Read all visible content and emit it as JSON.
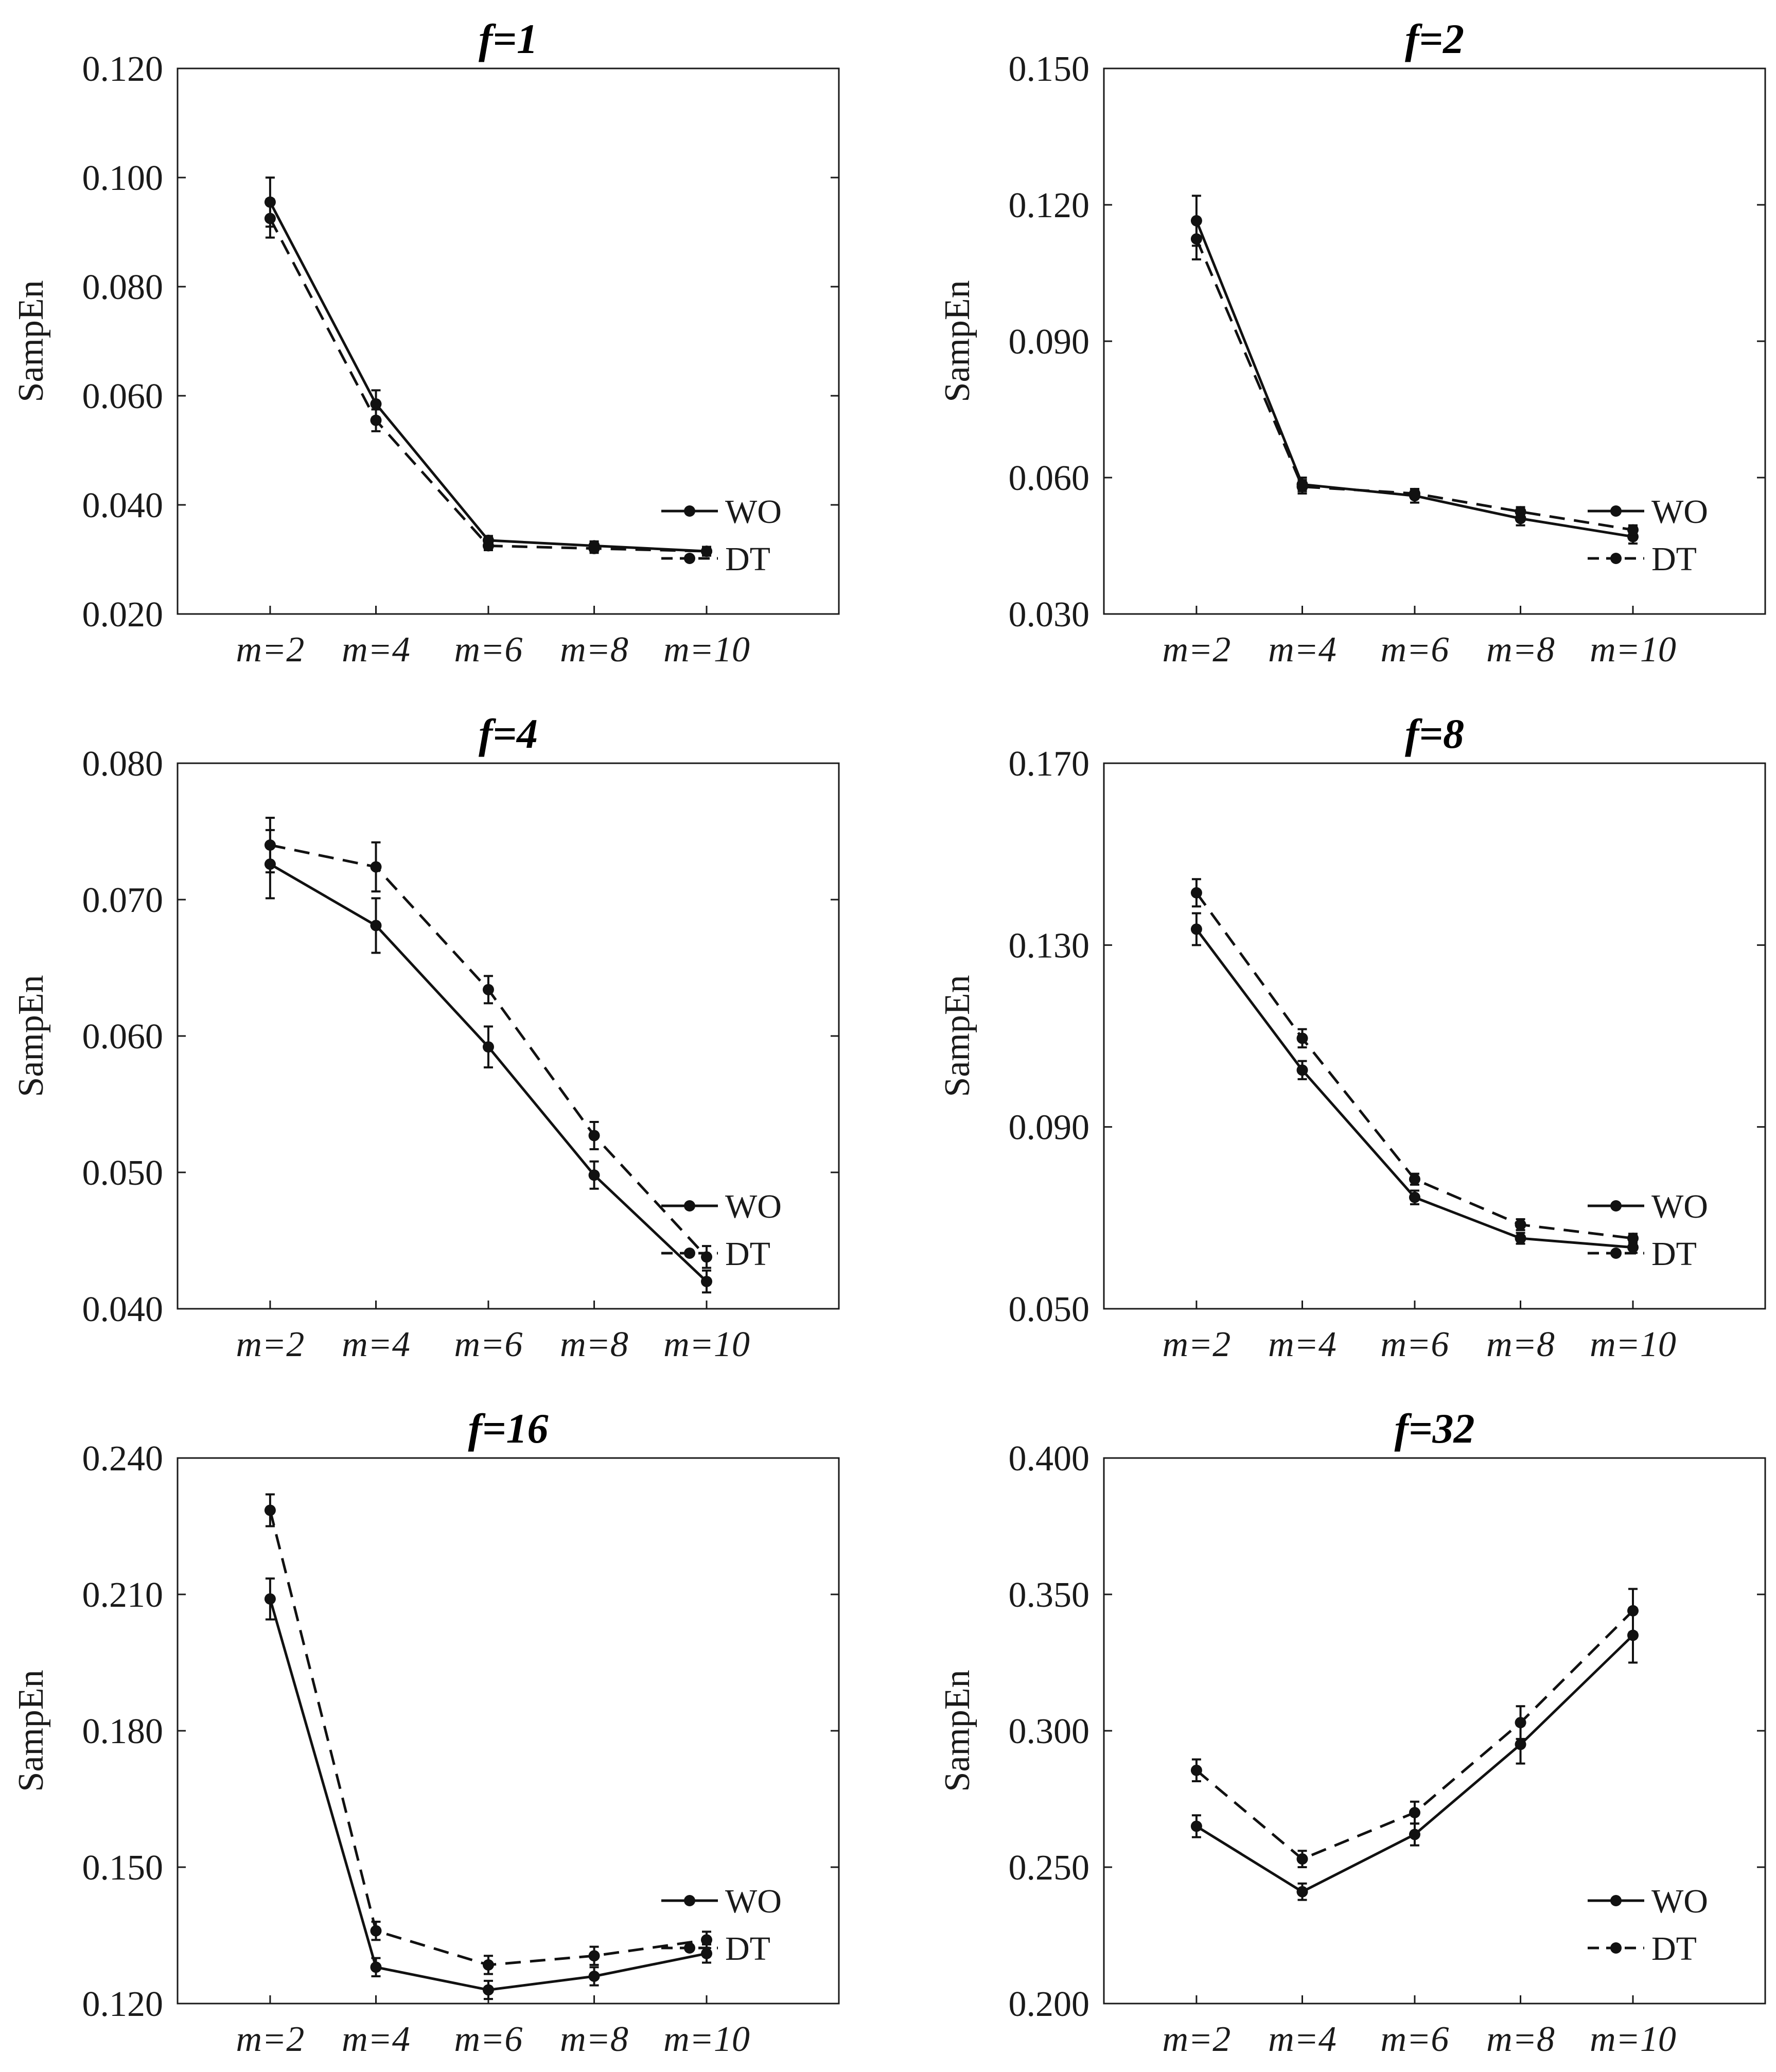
{
  "chart_data": [
    {
      "type": "line",
      "title": "f=1",
      "ylabel": "SampEn",
      "xlabel": "",
      "categories": [
        "m=2",
        "m=4",
        "m=6",
        "m=8",
        "m=10"
      ],
      "ylim": [
        0.02,
        0.12
      ],
      "yticks": [
        "0.020",
        "0.040",
        "0.060",
        "0.080",
        "0.100",
        "0.120"
      ],
      "legend_position": "lower-right",
      "series": [
        {
          "name": "WO",
          "style": "solid",
          "values": [
            0.0955,
            0.0585,
            0.0335,
            0.0325,
            0.0315
          ],
          "errors": [
            0.0045,
            0.0025,
            0.0008,
            0.0008,
            0.0008
          ]
        },
        {
          "name": "DT",
          "style": "dashed",
          "values": [
            0.0925,
            0.0555,
            0.0325,
            0.032,
            0.0315
          ],
          "errors": [
            0.0035,
            0.002,
            0.0008,
            0.0008,
            0.0008
          ]
        }
      ]
    },
    {
      "type": "line",
      "title": "f=2",
      "ylabel": "SampEn",
      "xlabel": "",
      "categories": [
        "m=2",
        "m=4",
        "m=6",
        "m=8",
        "m=10"
      ],
      "ylim": [
        0.03,
        0.15
      ],
      "yticks": [
        "0.030",
        "0.060",
        "0.090",
        "0.120",
        "0.150"
      ],
      "legend_position": "lower-right",
      "series": [
        {
          "name": "WO",
          "style": "solid",
          "values": [
            0.1165,
            0.0585,
            0.056,
            0.051,
            0.047
          ],
          "errors": [
            0.0055,
            0.0015,
            0.0015,
            0.0015,
            0.0015
          ]
        },
        {
          "name": "DT",
          "style": "dashed",
          "values": [
            0.1125,
            0.058,
            0.0565,
            0.0525,
            0.0485
          ],
          "errors": [
            0.0045,
            0.0015,
            0.001,
            0.001,
            0.001
          ]
        }
      ]
    },
    {
      "type": "line",
      "title": "f=4",
      "ylabel": "SampEn",
      "xlabel": "",
      "categories": [
        "m=2",
        "m=4",
        "m=6",
        "m=8",
        "m=10"
      ],
      "ylim": [
        0.04,
        0.08
      ],
      "yticks": [
        "0.040",
        "0.050",
        "0.060",
        "0.070",
        "0.080"
      ],
      "legend_position": "lower-right",
      "series": [
        {
          "name": "WO",
          "style": "solid",
          "values": [
            0.0726,
            0.0681,
            0.0592,
            0.0498,
            0.042
          ],
          "errors": [
            0.0025,
            0.002,
            0.0015,
            0.001,
            0.0008
          ]
        },
        {
          "name": "DT",
          "style": "dashed",
          "values": [
            0.074,
            0.0724,
            0.0634,
            0.0527,
            0.0438
          ],
          "errors": [
            0.002,
            0.0018,
            0.001,
            0.001,
            0.0008
          ]
        }
      ]
    },
    {
      "type": "line",
      "title": "f=8",
      "ylabel": "SampEn",
      "xlabel": "",
      "categories": [
        "m=2",
        "m=4",
        "m=6",
        "m=8",
        "m=10"
      ],
      "ylim": [
        0.05,
        0.17
      ],
      "yticks": [
        "0.050",
        "0.090",
        "0.130",
        "0.170"
      ],
      "legend_position": "lower-right",
      "series": [
        {
          "name": "WO",
          "style": "solid",
          "values": [
            0.1335,
            0.1025,
            0.0745,
            0.0655,
            0.0635
          ],
          "errors": [
            0.0035,
            0.002,
            0.0015,
            0.0012,
            0.0012
          ]
        },
        {
          "name": "DT",
          "style": "dashed",
          "values": [
            0.1415,
            0.1095,
            0.0785,
            0.0685,
            0.0655
          ],
          "errors": [
            0.003,
            0.002,
            0.0012,
            0.0012,
            0.001
          ]
        }
      ]
    },
    {
      "type": "line",
      "title": "f=16",
      "ylabel": "SampEn",
      "xlabel": "",
      "categories": [
        "m=2",
        "m=4",
        "m=6",
        "m=8",
        "m=10"
      ],
      "ylim": [
        0.12,
        0.24
      ],
      "yticks": [
        "0.120",
        "0.150",
        "0.180",
        "0.210",
        "0.240"
      ],
      "legend_position": "lower-right",
      "series": [
        {
          "name": "WO",
          "style": "solid",
          "values": [
            0.209,
            0.128,
            0.123,
            0.126,
            0.131
          ],
          "errors": [
            0.0045,
            0.002,
            0.002,
            0.002,
            0.002
          ]
        },
        {
          "name": "DT",
          "style": "dashed",
          "values": [
            0.2285,
            0.136,
            0.1285,
            0.1305,
            0.134
          ],
          "errors": [
            0.0035,
            0.002,
            0.002,
            0.002,
            0.0018
          ]
        }
      ]
    },
    {
      "type": "line",
      "title": "f=32",
      "ylabel": "SampEn",
      "xlabel": "",
      "categories": [
        "m=2",
        "m=4",
        "m=6",
        "m=8",
        "m=10"
      ],
      "ylim": [
        0.2,
        0.4
      ],
      "yticks": [
        "0.200",
        "0.250",
        "0.300",
        "0.350",
        "0.400"
      ],
      "legend_position": "lower-right",
      "series": [
        {
          "name": "WO",
          "style": "solid",
          "values": [
            0.265,
            0.241,
            0.262,
            0.295,
            0.335
          ],
          "errors": [
            0.004,
            0.003,
            0.004,
            0.007,
            0.01
          ]
        },
        {
          "name": "DT",
          "style": "dashed",
          "values": [
            0.2855,
            0.253,
            0.27,
            0.303,
            0.344
          ],
          "errors": [
            0.004,
            0.003,
            0.004,
            0.006,
            0.008
          ]
        }
      ]
    }
  ]
}
